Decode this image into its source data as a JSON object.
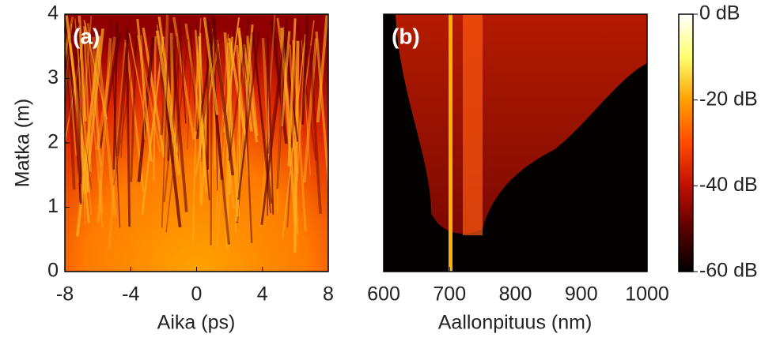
{
  "chart_data": [
    {
      "type": "heatmap",
      "label": "(a)",
      "xlabel": "Aika (ps)",
      "ylabel": "Matka (m)",
      "xlim": [
        -8,
        8
      ],
      "xticks": [
        -8,
        -4,
        0,
        4,
        8
      ],
      "ylim": [
        0,
        4
      ],
      "yticks": [
        0,
        1,
        2,
        3,
        4
      ]
    },
    {
      "type": "heatmap",
      "label": "(b)",
      "xlabel": "Aallonpituus (nm)",
      "xlim": [
        600,
        1000
      ],
      "xticks": [
        600,
        700,
        800,
        900,
        1000
      ],
      "ylim": [
        0,
        4
      ]
    },
    {
      "type": "colorbar",
      "clim": [
        -60,
        0
      ],
      "colormap": [
        "#000000",
        "#5a0000",
        "#c01000",
        "#ff4a00",
        "#ffa000",
        "#ffff70",
        "#ffffff"
      ],
      "ticks": [
        {
          "value": 0,
          "label": "0 dB"
        },
        {
          "value": -20,
          "label": "-20 dB"
        },
        {
          "value": -40,
          "label": "-40 dB"
        },
        {
          "value": -60,
          "label": "-60 dB"
        }
      ]
    }
  ]
}
